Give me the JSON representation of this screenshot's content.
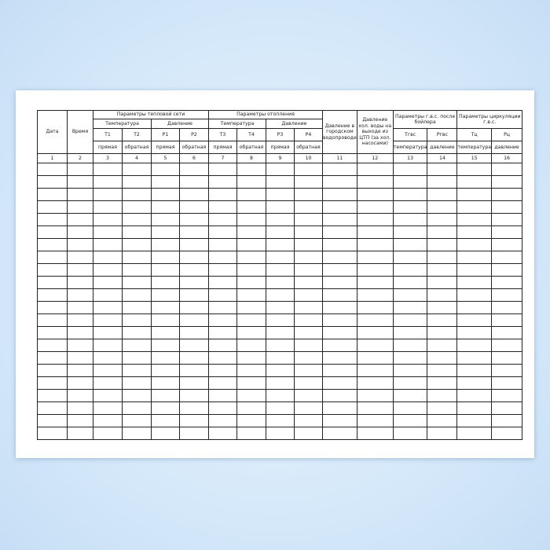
{
  "columns": {
    "date": "Дата",
    "time": "Время",
    "heat_network": {
      "title": "Параметры тепловой сети",
      "temperature": "Температура",
      "pressure": "Давление",
      "codes": [
        "T1",
        "T2",
        "P1",
        "P2"
      ],
      "subs": [
        "прямая",
        "обратная",
        "прямая",
        "обратная"
      ]
    },
    "heating": {
      "title": "Параметры отопления",
      "temperature": "Температура",
      "pressure": "Давление",
      "codes": [
        "T3",
        "T4",
        "P3",
        "P4"
      ],
      "subs": [
        "прямая",
        "обратная",
        "прямая",
        "обратная"
      ]
    },
    "city_water_pressure": "Давление в городском водопроводе",
    "cold_water_pressure": "Давление хол. воды на выходе из ЦТП (за хол. насосами)",
    "hws_after_boiler": {
      "title": "Параметры г.в.с. после бойлера",
      "codes": [
        "Tгвс",
        "Pгвс"
      ],
      "subs": [
        "температура",
        "давление"
      ]
    },
    "hws_circulation": {
      "title": "Параметры циркуляции г.в.с.",
      "codes": [
        "Tц",
        "Pц"
      ],
      "subs": [
        "температура",
        "давление"
      ]
    }
  },
  "column_numbers": [
    "1",
    "2",
    "3",
    "4",
    "5",
    "6",
    "7",
    "8",
    "9",
    "10",
    "11",
    "12",
    "13",
    "14",
    "15",
    "16"
  ],
  "empty_rows": 22
}
